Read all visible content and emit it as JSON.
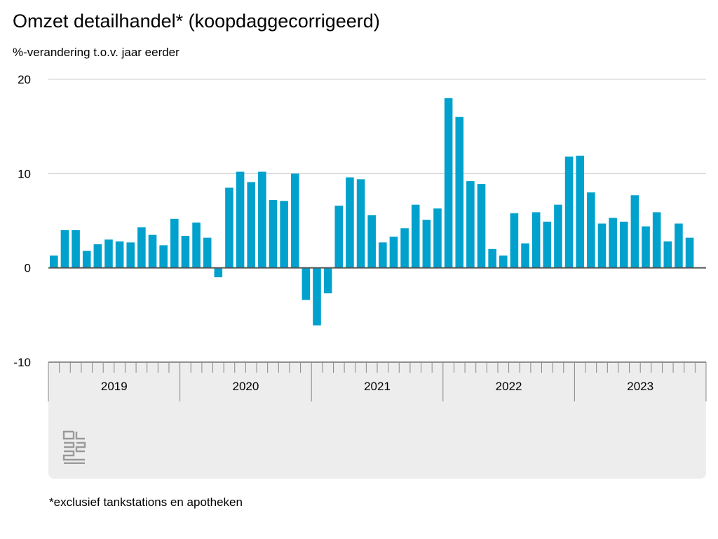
{
  "title": "Omzet detailhandel* (koopdaggecorrigeerd)",
  "subtitle": "%-verandering t.o.v. jaar eerder",
  "footnote": "*exclusief tankstations en apotheken",
  "logo": "cbs",
  "colors": {
    "bar": "#00a1cd",
    "grid": "#cccccc",
    "zero": "#555555",
    "panel": "#ededed",
    "tick": "#888888"
  },
  "chart_data": {
    "type": "bar",
    "ylim": [
      -10,
      20
    ],
    "yticks": [
      20,
      10,
      0,
      -10
    ],
    "ylabel": "%-verandering t.o.v. jaar eerder",
    "xlabel": "",
    "grid": true,
    "years": [
      "2019",
      "2020",
      "2021",
      "2022",
      "2023"
    ],
    "months_per_year": 12,
    "values": [
      1.3,
      4.0,
      4.0,
      1.8,
      2.5,
      3.0,
      2.8,
      2.7,
      4.3,
      3.5,
      2.4,
      5.2,
      3.4,
      4.8,
      3.2,
      -1.0,
      8.5,
      10.2,
      9.1,
      10.2,
      7.2,
      7.1,
      10.0,
      -3.4,
      -6.1,
      -2.7,
      6.6,
      9.6,
      9.4,
      5.6,
      2.7,
      3.3,
      4.2,
      6.7,
      5.1,
      6.3,
      18.0,
      16.0,
      9.2,
      8.9,
      2.0,
      1.3,
      5.8,
      2.6,
      5.9,
      4.9,
      6.7,
      11.8,
      11.9,
      8.0,
      4.7,
      5.3,
      4.9,
      7.7,
      4.4,
      5.9,
      2.8,
      4.7,
      3.2
    ]
  }
}
